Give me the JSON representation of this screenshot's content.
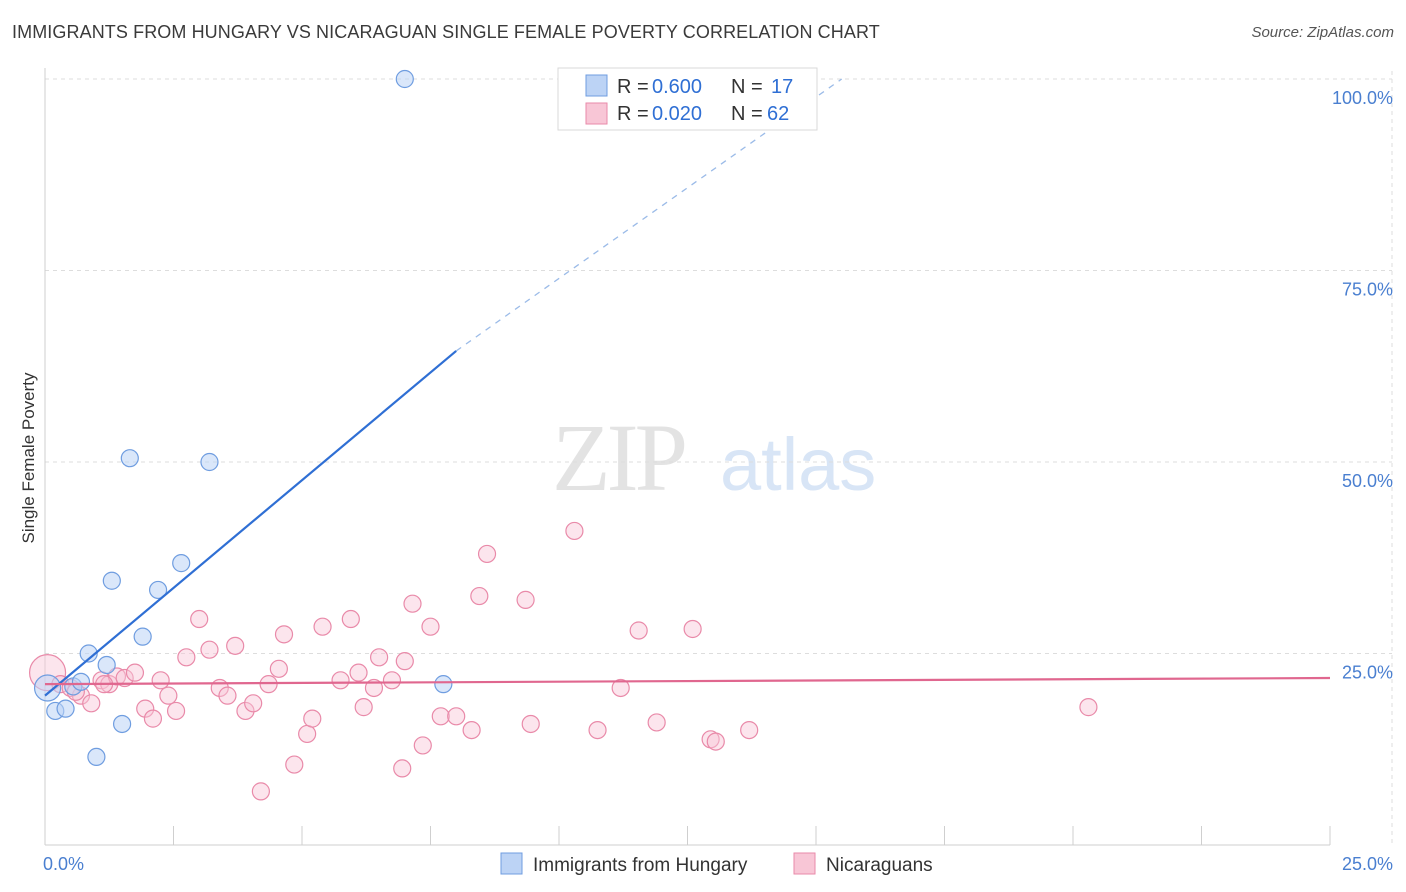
{
  "header": {
    "title": "IMMIGRANTS FROM HUNGARY VS NICARAGUAN SINGLE FEMALE POVERTY CORRELATION CHART",
    "source": "Source: ZipAtlas.com"
  },
  "watermark": {
    "zip": "ZIP",
    "atlas": "atlas"
  },
  "colors": {
    "blue_fill": "#bcd3f5",
    "blue_stroke": "#6f9de0",
    "blue_line": "#2f6fd4",
    "pink_fill": "#f8c6d6",
    "pink_stroke": "#e98aa9",
    "pink_line": "#e0678f",
    "tick": "#4a7fd0",
    "grid": "#dddddd"
  },
  "legend": {
    "rows": [
      {
        "r_label": "R = ",
        "r_value": "0.600",
        "n_label": "N = ",
        "n_value": "17"
      },
      {
        "r_label": "R = ",
        "r_value": "0.020",
        "n_label": "N = ",
        "n_value": "62"
      }
    ]
  },
  "chart_data": {
    "type": "scatter",
    "title": "IMMIGRANTS FROM HUNGARY VS NICARAGUAN SINGLE FEMALE POVERTY CORRELATION CHART",
    "xlabel": "",
    "ylabel": "Single Female Poverty",
    "xlim": [
      0,
      25
    ],
    "ylim": [
      0,
      100
    ],
    "x_tick_labels": [
      "0.0%",
      "25.0%"
    ],
    "y_ticks": [
      25,
      50,
      75,
      100
    ],
    "y_tick_labels": [
      "25.0%",
      "50.0%",
      "75.0%",
      "100.0%"
    ],
    "legend_position": "top-center",
    "series": [
      {
        "name": "Immigrants from Hungary",
        "color": "#6f9de0",
        "r": 0.6,
        "n": 17,
        "points": [
          [
            0.05,
            20.5
          ],
          [
            0.2,
            17.5
          ],
          [
            0.4,
            17.8
          ],
          [
            0.55,
            20.7
          ],
          [
            0.7,
            21.3
          ],
          [
            0.85,
            25.0
          ],
          [
            1.0,
            11.5
          ],
          [
            1.2,
            23.5
          ],
          [
            1.3,
            34.5
          ],
          [
            1.5,
            15.8
          ],
          [
            1.65,
            50.5
          ],
          [
            1.9,
            27.2
          ],
          [
            2.2,
            33.3
          ],
          [
            2.65,
            36.8
          ],
          [
            3.2,
            50.0
          ],
          [
            7.0,
            100.0
          ],
          [
            7.75,
            21.0
          ]
        ],
        "trend": {
          "x0": 0,
          "y0": 19.5,
          "x1": 8.0,
          "y1": 64.5,
          "dash_x1": 15.5,
          "dash_y1": 100
        }
      },
      {
        "name": "Nicaraguans",
        "color": "#e98aa9",
        "r": 0.02,
        "n": 62,
        "points": [
          [
            0.05,
            22.5
          ],
          [
            0.3,
            21.0
          ],
          [
            0.5,
            20.5
          ],
          [
            0.7,
            19.5
          ],
          [
            0.9,
            18.5
          ],
          [
            1.1,
            21.5
          ],
          [
            1.25,
            21.0
          ],
          [
            1.4,
            22.0
          ],
          [
            1.55,
            21.8
          ],
          [
            1.75,
            22.5
          ],
          [
            1.95,
            17.8
          ],
          [
            2.1,
            16.5
          ],
          [
            2.25,
            21.5
          ],
          [
            2.4,
            19.5
          ],
          [
            2.55,
            17.5
          ],
          [
            2.75,
            24.5
          ],
          [
            3.0,
            29.5
          ],
          [
            3.2,
            25.5
          ],
          [
            3.4,
            20.5
          ],
          [
            3.55,
            19.5
          ],
          [
            3.7,
            26.0
          ],
          [
            3.9,
            17.5
          ],
          [
            4.05,
            18.5
          ],
          [
            4.2,
            7.0
          ],
          [
            4.35,
            21.0
          ],
          [
            4.55,
            23.0
          ],
          [
            4.65,
            27.5
          ],
          [
            4.85,
            10.5
          ],
          [
            5.1,
            14.5
          ],
          [
            5.2,
            16.5
          ],
          [
            5.4,
            28.5
          ],
          [
            5.75,
            21.5
          ],
          [
            5.95,
            29.5
          ],
          [
            6.1,
            22.5
          ],
          [
            6.2,
            18.0
          ],
          [
            6.4,
            20.5
          ],
          [
            6.5,
            24.5
          ],
          [
            6.75,
            21.5
          ],
          [
            6.95,
            10.0
          ],
          [
            7.0,
            24.0
          ],
          [
            7.15,
            31.5
          ],
          [
            7.35,
            13.0
          ],
          [
            7.5,
            28.5
          ],
          [
            7.7,
            16.8
          ],
          [
            8.0,
            16.8
          ],
          [
            8.3,
            15.0
          ],
          [
            8.45,
            32.5
          ],
          [
            8.6,
            38.0
          ],
          [
            9.35,
            32.0
          ],
          [
            9.45,
            15.8
          ],
          [
            10.3,
            41.0
          ],
          [
            10.75,
            15.0
          ],
          [
            11.2,
            20.5
          ],
          [
            11.55,
            28.0
          ],
          [
            11.9,
            16.0
          ],
          [
            12.6,
            28.2
          ],
          [
            12.95,
            13.8
          ],
          [
            13.05,
            13.5
          ],
          [
            13.7,
            15.0
          ],
          [
            20.3,
            18.0
          ],
          [
            1.15,
            21.0
          ],
          [
            0.6,
            20.0
          ]
        ],
        "trend": {
          "x0": 0,
          "y0": 21.0,
          "x1": 25,
          "y1": 21.8
        }
      }
    ]
  }
}
